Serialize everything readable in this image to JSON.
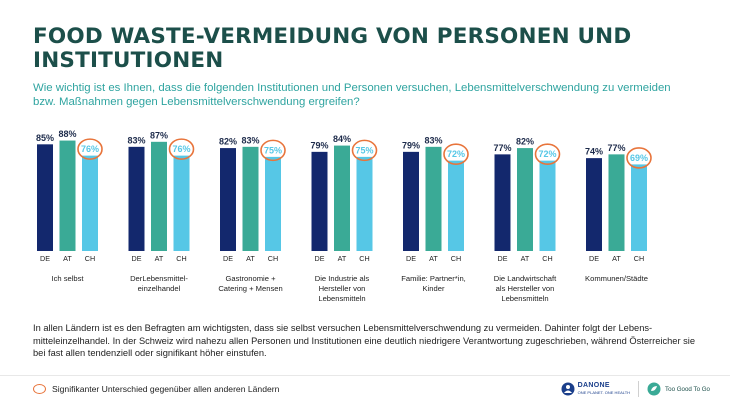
{
  "title": "FOOD WASTE-VERMEIDUNG VON PERSONEN UND INSTITUTIONEN",
  "subtitle": "Wie wichtig ist es Ihnen, dass die folgenden Institutionen und Personen versuchen, Lebensmittelverschwendung zu vermeiden bzw. Maßnahmen gegen Lebensmittelverschwendung ergreifen?",
  "footnote": "In allen Ländern ist es den Befragten am wichtigsten, dass sie selbst versuchen Lebensmittelverschwendung zu vermeiden. Dahinter folgt der Lebens­mitteleinzelhandel. In der Schweiz wird nahezu allen Personen und Institutionen eine deutlich niedrigere Verantwortung zugeschrieben, während Österreicher sie bei fast allen tendenziell oder signifikant höher einstufen.",
  "legend": {
    "label": "Signifikanter Unterschied gegenüber allen anderen Ländern"
  },
  "logos": {
    "danone_name": "DANONE",
    "danone_tag": "ONE PLANET. ONE HEALTH",
    "tgtg_name": "Too Good To Go"
  },
  "colors": {
    "DE": "#13286d",
    "AT": "#3aaa96",
    "CH": "#56c7e6",
    "highlight": "#e8743b",
    "label": "#1c2a4a"
  },
  "chart_data": {
    "type": "bar",
    "series_keys": [
      "DE",
      "AT",
      "CH"
    ],
    "groups": [
      {
        "category": [
          "Ich selbst"
        ],
        "values": [
          85,
          88,
          76
        ],
        "labels": [
          "85%",
          "88%",
          "76%"
        ],
        "highlight": [
          false,
          false,
          true
        ]
      },
      {
        "category": [
          "DerLebensmittel-",
          "einzelhandel"
        ],
        "values": [
          83,
          87,
          76
        ],
        "labels": [
          "83%",
          "87%",
          "76%"
        ],
        "highlight": [
          false,
          false,
          true
        ]
      },
      {
        "category": [
          "Gastronomie +",
          "Catering + Mensen"
        ],
        "values": [
          82,
          83,
          75
        ],
        "labels": [
          "82%",
          "83%",
          "75%"
        ],
        "highlight": [
          false,
          false,
          true
        ]
      },
      {
        "category": [
          "Die Industrie als",
          "Hersteller von",
          "Lebensmitteln"
        ],
        "values": [
          79,
          84,
          75
        ],
        "labels": [
          "79%",
          "84%",
          "75%"
        ],
        "highlight": [
          false,
          false,
          true
        ]
      },
      {
        "category": [
          "Familie: Partner*in,",
          "Kinder"
        ],
        "values": [
          79,
          83,
          72
        ],
        "labels": [
          "79%",
          "83%",
          "72%"
        ],
        "highlight": [
          false,
          false,
          true
        ]
      },
      {
        "category": [
          "Die Landwirtschaft",
          "als Hersteller von",
          "Lebensmitteln"
        ],
        "values": [
          77,
          82,
          72
        ],
        "labels": [
          "77%",
          "82%",
          "72%"
        ],
        "highlight": [
          false,
          false,
          true
        ]
      },
      {
        "category": [
          "Kommunen/Städte"
        ],
        "values": [
          74,
          77,
          69
        ],
        "labels": [
          "74%",
          "77%",
          "69%"
        ],
        "highlight": [
          false,
          false,
          true
        ]
      }
    ],
    "ylim": [
      0,
      100
    ],
    "grid": false,
    "legend": "bottom-left"
  }
}
